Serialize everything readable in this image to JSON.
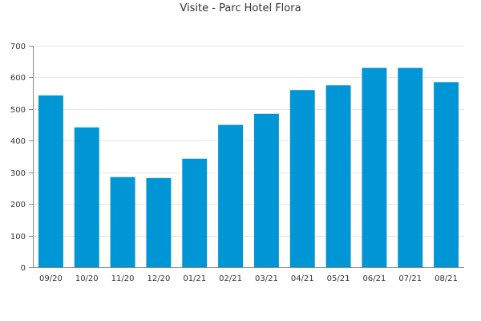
{
  "chart_data": {
    "type": "bar",
    "title": "Visite - Parc Hotel Flora",
    "xlabel": "",
    "ylabel": "",
    "categories": [
      "09/20",
      "10/20",
      "11/20",
      "12/20",
      "01/21",
      "02/21",
      "03/21",
      "04/21",
      "05/21",
      "06/21",
      "07/21",
      "08/21"
    ],
    "values": [
      543,
      442,
      285,
      282,
      343,
      450,
      485,
      560,
      575,
      630,
      630,
      585
    ],
    "ylim": [
      0,
      700
    ],
    "yticks": [
      0,
      100,
      200,
      300,
      400,
      500,
      600,
      700
    ],
    "grid": true,
    "legend": "none",
    "bar_color": "#0096d6",
    "grid_color": "#e6e6e6",
    "axis_color": "#888888"
  }
}
